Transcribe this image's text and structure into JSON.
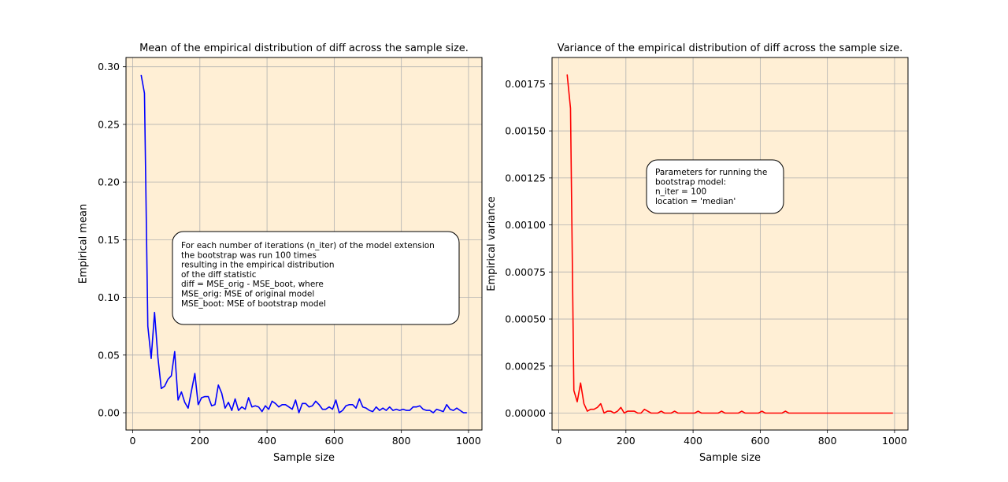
{
  "chart_data": [
    {
      "type": "line",
      "title": "Mean of the empirical distribution of diff across the sample size.",
      "xlabel": "Sample size",
      "ylabel": "Empirical mean",
      "xlim": [
        -20,
        1040
      ],
      "ylim": [
        -0.015,
        0.308
      ],
      "xticks": [
        0,
        200,
        400,
        600,
        800,
        1000
      ],
      "xtick_labels": [
        "0",
        "200",
        "400",
        "600",
        "800",
        "1000"
      ],
      "yticks": [
        0.0,
        0.05,
        0.1,
        0.15,
        0.2,
        0.25,
        0.3
      ],
      "ytick_labels": [
        "0.00",
        "0.05",
        "0.10",
        "0.15",
        "0.20",
        "0.25",
        "0.30"
      ],
      "grid": true,
      "background": "#ffefd5",
      "series": [
        {
          "color": "#0000ff",
          "x": [
            25,
            35,
            45,
            55,
            65,
            75,
            85,
            95,
            105,
            115,
            125,
            135,
            145,
            155,
            165,
            175,
            185,
            195,
            205,
            215,
            225,
            235,
            245,
            255,
            265,
            275,
            285,
            295,
            305,
            315,
            325,
            335,
            345,
            355,
            365,
            375,
            385,
            395,
            405,
            415,
            425,
            435,
            445,
            455,
            465,
            475,
            485,
            495,
            505,
            515,
            525,
            535,
            545,
            555,
            565,
            575,
            585,
            595,
            605,
            615,
            625,
            635,
            645,
            655,
            665,
            675,
            685,
            695,
            705,
            715,
            725,
            735,
            745,
            755,
            765,
            775,
            785,
            795,
            805,
            815,
            825,
            835,
            845,
            855,
            865,
            875,
            885,
            895,
            905,
            915,
            925,
            935,
            945,
            955,
            965,
            975,
            985,
            995
          ],
          "y": [
            0.293,
            0.277,
            0.075,
            0.047,
            0.087,
            0.048,
            0.021,
            0.023,
            0.029,
            0.032,
            0.053,
            0.011,
            0.018,
            0.009,
            0.004,
            0.019,
            0.034,
            0.007,
            0.013,
            0.014,
            0.014,
            0.006,
            0.007,
            0.024,
            0.017,
            0.004,
            0.009,
            0.002,
            0.012,
            0.002,
            0.005,
            0.003,
            0.013,
            0.005,
            0.006,
            0.005,
            0.001,
            0.006,
            0.003,
            0.01,
            0.008,
            0.005,
            0.007,
            0.007,
            0.005,
            0.003,
            0.011,
            0.0,
            0.008,
            0.008,
            0.005,
            0.006,
            0.01,
            0.007,
            0.003,
            0.003,
            0.005,
            0.003,
            0.011,
            0.0,
            0.002,
            0.006,
            0.007,
            0.007,
            0.004,
            0.012,
            0.005,
            0.004,
            0.002,
            0.001,
            0.005,
            0.002,
            0.004,
            0.002,
            0.005,
            0.002,
            0.003,
            0.002,
            0.003,
            0.002,
            0.002,
            0.005,
            0.005,
            0.006,
            0.003,
            0.002,
            0.002,
            0.0,
            0.003,
            0.002,
            0.001,
            0.007,
            0.003,
            0.002,
            0.004,
            0.002,
            0.0,
            0.0
          ]
        }
      ],
      "annotation": {
        "lines": [
          "For each number of iterations (n_iter) of the model extension",
          "the bootstrap was run 100 times",
          " resulting in the empirical distribution",
          "    of the diff statistic",
          " diff = MSE_orig - MSE_boot, where",
          " MSE_orig: MSE of original model",
          " MSE_boot: MSE of bootstrap model"
        ]
      }
    },
    {
      "type": "line",
      "title": "Variance of the empirical distribution of diff across the sample size.",
      "xlabel": "Sample size",
      "ylabel": "Empirical variance",
      "xlim": [
        -20,
        1040
      ],
      "ylim": [
        -9e-05,
        0.00189
      ],
      "xticks": [
        0,
        200,
        400,
        600,
        800,
        1000
      ],
      "xtick_labels": [
        "0",
        "200",
        "400",
        "600",
        "800",
        "1000"
      ],
      "yticks": [
        0.0,
        0.00025,
        0.0005,
        0.00075,
        0.001,
        0.00125,
        0.0015,
        0.00175
      ],
      "ytick_labels": [
        "0.00000",
        "0.00025",
        "0.00050",
        "0.00075",
        "0.00100",
        "0.00125",
        "0.00150",
        "0.00175"
      ],
      "grid": true,
      "background": "#ffefd5",
      "series": [
        {
          "color": "#ff0000",
          "x": [
            25,
            35,
            45,
            55,
            65,
            75,
            85,
            95,
            105,
            115,
            125,
            135,
            145,
            155,
            165,
            175,
            185,
            195,
            205,
            215,
            225,
            235,
            245,
            255,
            265,
            275,
            285,
            295,
            305,
            315,
            325,
            335,
            345,
            355,
            365,
            375,
            385,
            395,
            405,
            415,
            425,
            435,
            445,
            455,
            465,
            475,
            485,
            495,
            505,
            515,
            525,
            535,
            545,
            555,
            565,
            575,
            585,
            595,
            605,
            615,
            625,
            635,
            645,
            655,
            665,
            675,
            685,
            695,
            705,
            715,
            725,
            735,
            745,
            755,
            765,
            775,
            785,
            795,
            805,
            815,
            825,
            835,
            845,
            855,
            865,
            875,
            885,
            895,
            905,
            915,
            925,
            935,
            945,
            955,
            965,
            975,
            985,
            995
          ],
          "y": [
            0.0018,
            0.00162,
            0.00012,
            6e-05,
            0.00016,
            5e-05,
            1e-05,
            2e-05,
            2e-05,
            3e-05,
            5e-05,
            0.0,
            1e-05,
            1e-05,
            0.0,
            1e-05,
            3e-05,
            0.0,
            1e-05,
            1e-05,
            1e-05,
            0.0,
            0.0,
            2e-05,
            1e-05,
            0.0,
            0.0,
            0.0,
            1e-05,
            0.0,
            0.0,
            0.0,
            1e-05,
            0.0,
            0.0,
            0.0,
            0.0,
            0.0,
            0.0,
            1e-05,
            0.0,
            0.0,
            0.0,
            0.0,
            0.0,
            0.0,
            1e-05,
            0.0,
            0.0,
            0.0,
            0.0,
            0.0,
            1e-05,
            0.0,
            0.0,
            0.0,
            0.0,
            0.0,
            1e-05,
            0.0,
            0.0,
            0.0,
            0.0,
            0.0,
            0.0,
            1e-05,
            0.0,
            0.0,
            0.0,
            0.0,
            0.0,
            0.0,
            0.0,
            0.0,
            0.0,
            0.0,
            0.0,
            0.0,
            0.0,
            0.0,
            0.0,
            0.0,
            0.0,
            0.0,
            0.0,
            0.0,
            0.0,
            0.0,
            0.0,
            0.0,
            0.0,
            0.0,
            0.0,
            0.0,
            0.0,
            0.0,
            0.0,
            0.0
          ]
        }
      ],
      "annotation": {
        "lines": [
          "Parameters for running the",
          "bootstrap model:",
          "n_iter = 100",
          "location = 'median'"
        ]
      }
    }
  ]
}
